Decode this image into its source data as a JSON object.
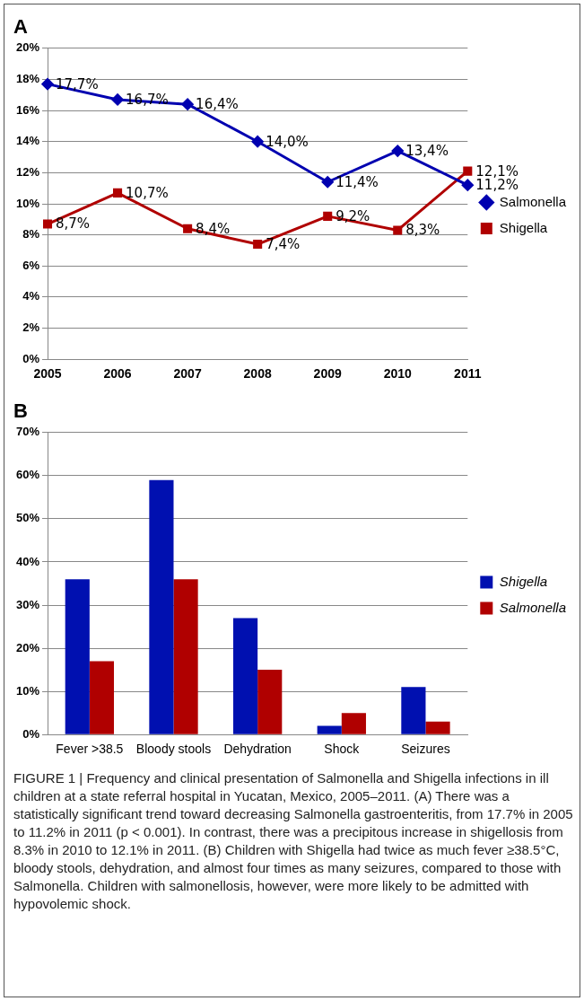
{
  "chart_data": [
    {
      "type": "line",
      "title": "A",
      "categories": [
        "2005",
        "2006",
        "2007",
        "2008",
        "2009",
        "2010",
        "2011"
      ],
      "series": [
        {
          "name": "Salmonella",
          "color": "#0000b0",
          "marker": "diamond",
          "values": [
            17.7,
            16.7,
            16.4,
            14.0,
            11.4,
            13.4,
            11.2
          ],
          "value_labels": [
            "17,7%",
            "16,7%",
            "16,4%",
            "14,0%",
            "11,4%",
            "13,4%",
            "11,2%"
          ]
        },
        {
          "name": "Shigella",
          "color": "#b00000",
          "marker": "square",
          "values": [
            8.7,
            10.7,
            8.4,
            7.4,
            9.2,
            8.3,
            12.1
          ],
          "value_labels": [
            "8,7%",
            "10,7%",
            "8,4%",
            "7,4%",
            "9,2%",
            "8,3%",
            "12,1%"
          ]
        }
      ],
      "ylim": [
        0,
        20
      ],
      "yticks": [
        {
          "value": 0,
          "label": "0%"
        },
        {
          "value": 2,
          "label": "2%"
        },
        {
          "value": 4,
          "label": "4%"
        },
        {
          "value": 6,
          "label": "6%"
        },
        {
          "value": 8,
          "label": "8%"
        },
        {
          "value": 10,
          "label": "10%"
        },
        {
          "value": 12,
          "label": "12%"
        },
        {
          "value": 14,
          "label": "14%"
        },
        {
          "value": 16,
          "label": "16%"
        },
        {
          "value": 18,
          "label": "18%"
        },
        {
          "value": 20,
          "label": "20%"
        }
      ],
      "grid": "y",
      "legend": "right"
    },
    {
      "type": "bar",
      "title": "B",
      "categories": [
        "Fever >38.5",
        "Bloody stools",
        "Dehydration",
        "Shock",
        "Seizures"
      ],
      "series": [
        {
          "name": "Shigella",
          "color": "#0010b0",
          "values": [
            36,
            59,
            27,
            2,
            11
          ]
        },
        {
          "name": "Salmonella",
          "color": "#b00000",
          "values": [
            17,
            36,
            15,
            5,
            3
          ]
        }
      ],
      "ylim": [
        0,
        70
      ],
      "yticks": [
        {
          "value": 0,
          "label": "0%"
        },
        {
          "value": 10,
          "label": "10%"
        },
        {
          "value": 20,
          "label": "20%"
        },
        {
          "value": 30,
          "label": "30%"
        },
        {
          "value": 40,
          "label": "40%"
        },
        {
          "value": 50,
          "label": "50%"
        },
        {
          "value": 60,
          "label": "60%"
        },
        {
          "value": 70,
          "label": "70%"
        }
      ],
      "grid": "y",
      "legend": "right",
      "annotations": [
        "FIGURE 1 | Frequency and clinical presentation of Salmonella and Shigella infections in ill children at a state referral hospital in Yucatan, Mexico, 2005–2011. (A) There was a statistically significant trend toward decreasing Salmonella gastroenteritis, from 17.7% in 2005 to 11.2% in 2011 (p < 0.001). In contrast, there was a precipitous increase in shigellosis from 8.3% in 2010 to 12.1% in 2011. (B) Children with Shigella had twice as much fever ≥38.5°C, bloody stools, dehydration, and almost four times as many seizures, compared to those with Salmonella. Children with salmonellosis, however, were more likely to be admitted with hypovolemic shock."
      ]
    }
  ]
}
